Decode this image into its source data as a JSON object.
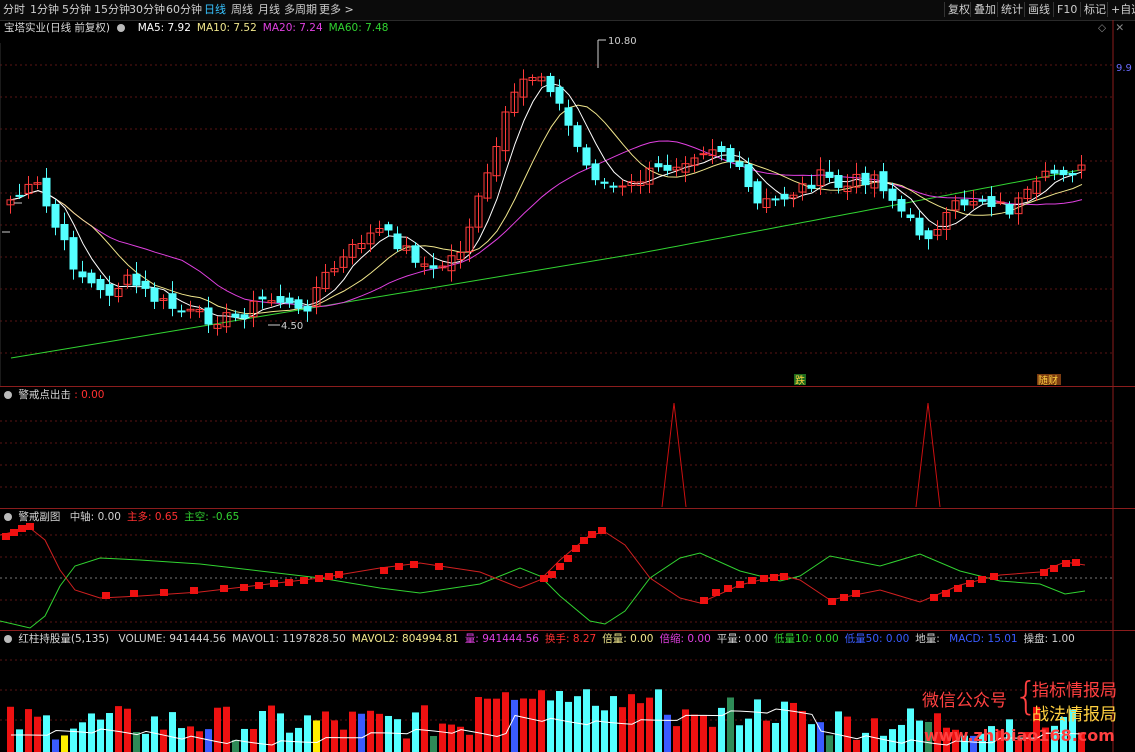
{
  "toolbar": {
    "periods": [
      "分时",
      "1分钟",
      "5分钟",
      "15分钟",
      "30分钟",
      "60分钟",
      "日线",
      "周线",
      "月线",
      "多周期",
      "更多 >"
    ],
    "active_period": "日线",
    "right_buttons": [
      "复权",
      "叠加",
      "统计",
      "画线",
      "F10",
      "标记",
      "+自选"
    ]
  },
  "main_panel": {
    "title": "宝塔实业(日线 前复权)",
    "ma_labels": [
      {
        "text": "MA5: 7.92",
        "color": "#ffffff"
      },
      {
        "text": "MA10: 7.52",
        "color": "#f0e68c"
      },
      {
        "text": "MA20: 7.24",
        "color": "#e040e0"
      },
      {
        "text": "MA60: 7.48",
        "color": "#31d331"
      }
    ],
    "high_label": "10.80",
    "low_label": "4.50",
    "right_price_label": "9.9",
    "marker_die": "跌",
    "marker_caifu": "随财"
  },
  "panel2": {
    "title": "警戒点出击",
    "value": ": 0.00"
  },
  "panel3": {
    "title": "警戒副图",
    "labels": [
      {
        "text": "中轴: 0.00",
        "color": "#d0d0d0"
      },
      {
        "text": "主多: 0.65",
        "color": "#ff3030"
      },
      {
        "text": "主空: -0.65",
        "color": "#31d331"
      }
    ]
  },
  "panel4": {
    "title": "红柱持股量(5,135)",
    "labels": [
      {
        "text": "VOLUME: 941444.56",
        "color": "#d0d0d0"
      },
      {
        "text": "MAVOL1: 1197828.50",
        "color": "#d0d0d0"
      },
      {
        "text": "MAVOL2: 804994.81",
        "color": "#f0e68c"
      },
      {
        "text": "量: 941444.56",
        "color": "#e040e0"
      },
      {
        "text": "换手: 8.27",
        "color": "#ff3030"
      },
      {
        "text": "倍量: 0.00",
        "color": "#f0e68c"
      },
      {
        "text": "倍缩: 0.00",
        "color": "#e040e0"
      },
      {
        "text": "平量: 0.00",
        "color": "#d0d0d0"
      },
      {
        "text": "低量10: 0.00",
        "color": "#31d331"
      },
      {
        "text": "低量50: 0.00",
        "color": "#3a5bff"
      },
      {
        "text": "地量: ",
        "color": "#d0d0d0"
      },
      {
        "text": "MACD: 15.01",
        "color": "#3a5bff"
      },
      {
        "text": "操盘: 1.00",
        "color": "#d0d0d0"
      }
    ]
  },
  "watermark": {
    "line1": "微信公众号",
    "right1": "指标情报局",
    "right2": "战法情报局",
    "url": "www.zhibiao168.com"
  },
  "colors": {
    "up": "#ff3b3b",
    "down": "#54ffff",
    "ma5": "#ffffff",
    "ma10": "#f0e68c",
    "ma20": "#e040e0",
    "ma60": "#31d331"
  }
}
